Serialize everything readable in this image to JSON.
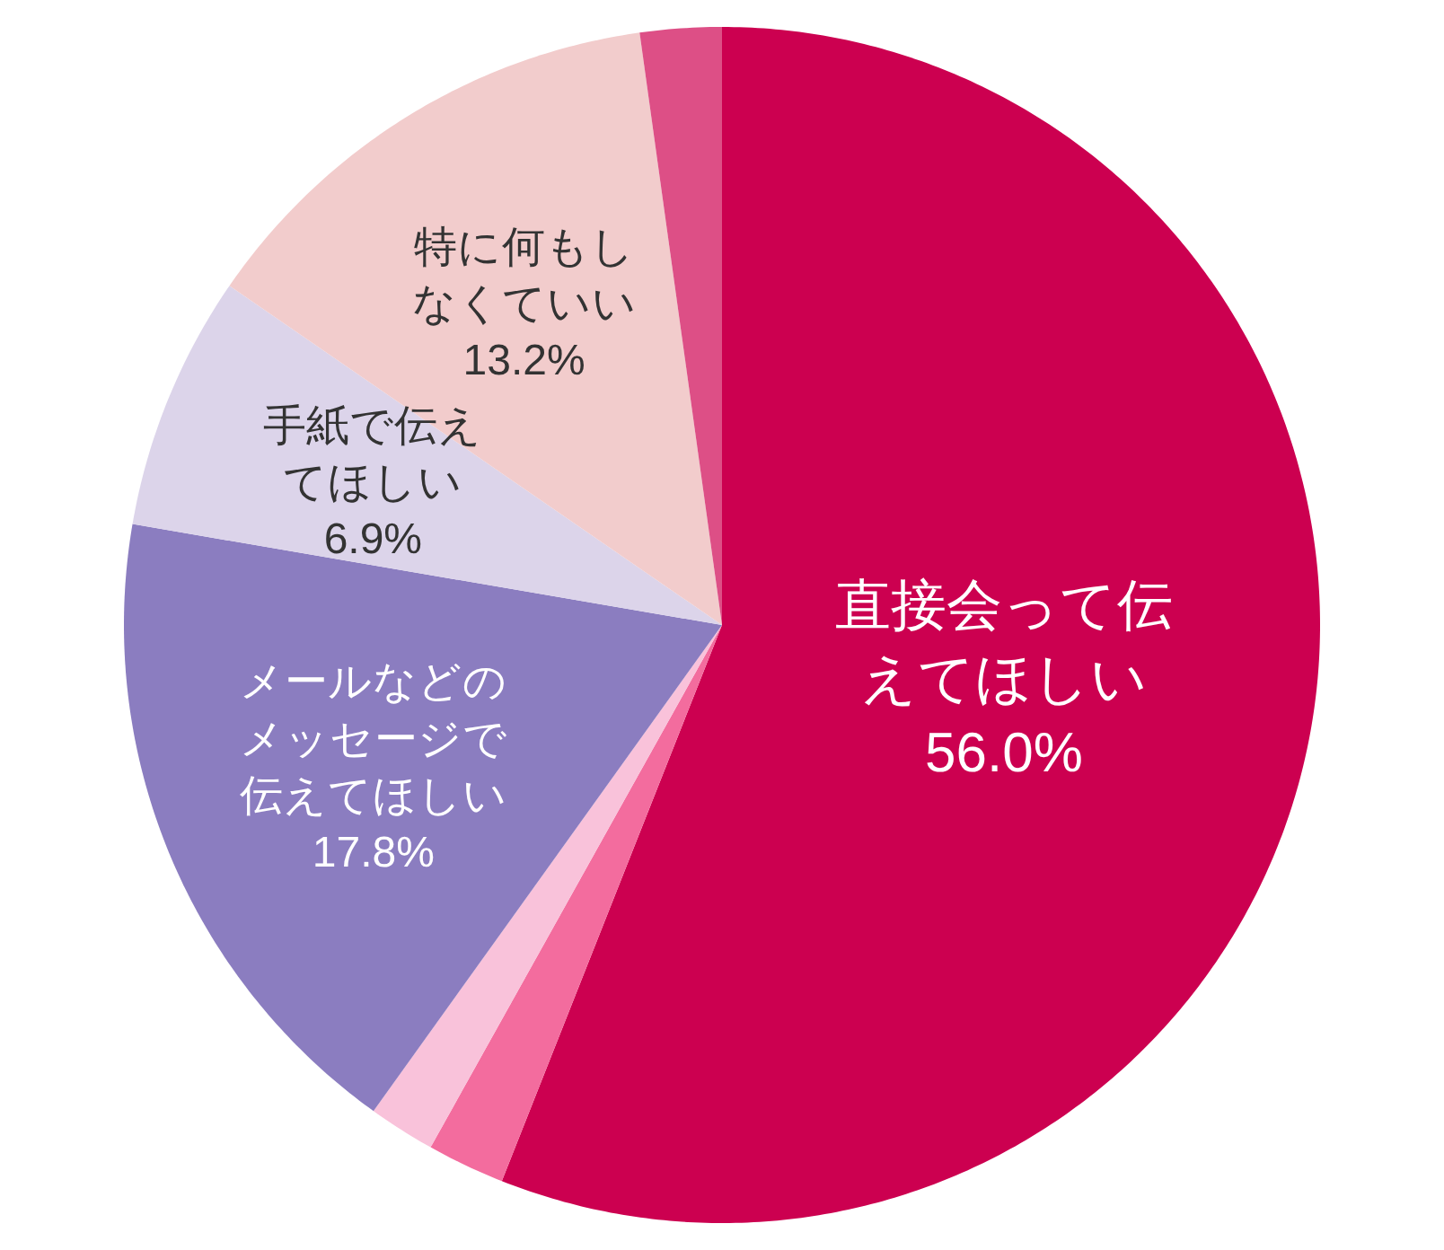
{
  "chart_data": {
    "type": "pie",
    "categories": [
      "直接会って伝えてほしい",
      null,
      null,
      "メールなどのメッセージで伝えてほしい",
      "手紙で伝えてほしい",
      "特に何もしなくていい",
      null
    ],
    "values": [
      56.0,
      2.1,
      1.8,
      17.8,
      6.9,
      13.2,
      2.2
    ],
    "value_labels": [
      "56.0%",
      null,
      null,
      "17.8%",
      "6.9%",
      "13.2%",
      null
    ],
    "colors": [
      "#cc0050",
      "#f36c9e",
      "#f9c2da",
      "#8b7dc0",
      "#dcd4ea",
      "#f2cccc",
      "#dd4f86"
    ],
    "legend": false
  }
}
